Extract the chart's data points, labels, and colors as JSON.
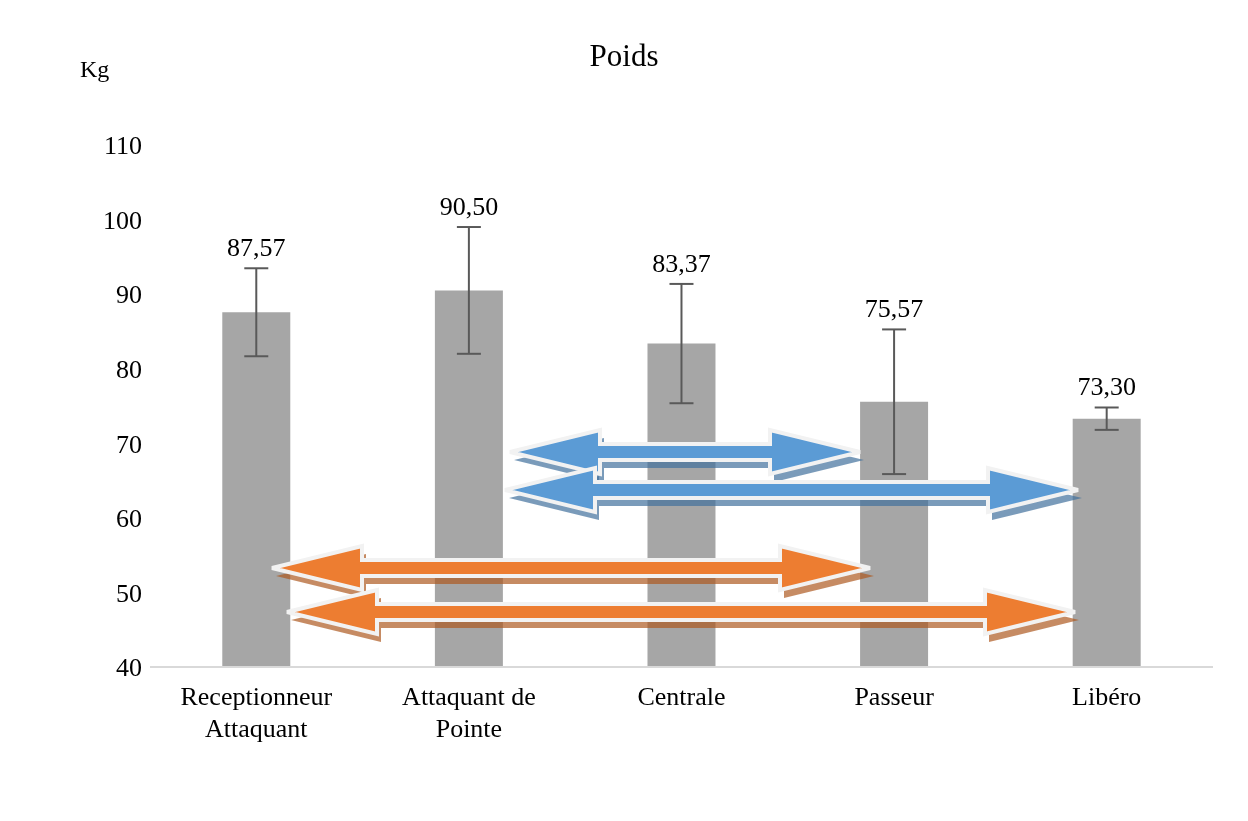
{
  "chart_data": {
    "type": "bar",
    "title": "Poids",
    "ylabel": "Kg",
    "categories": [
      "Receptionneur Attaquant",
      "Attaquant de Pointe",
      "Centrale",
      "Passeur",
      "Libéro"
    ],
    "values": [
      87.57,
      90.5,
      83.37,
      75.57,
      73.3
    ],
    "value_labels": [
      "87,57",
      "90,50",
      "83,37",
      "75,57",
      "73,30"
    ],
    "errors": [
      5.9,
      8.5,
      8.0,
      9.7,
      1.5
    ],
    "color": "#a6a6a6",
    "ylim": [
      40,
      110
    ],
    "yticks": [
      40,
      50,
      60,
      70,
      80,
      90,
      100,
      110
    ],
    "grid": false
  }
}
